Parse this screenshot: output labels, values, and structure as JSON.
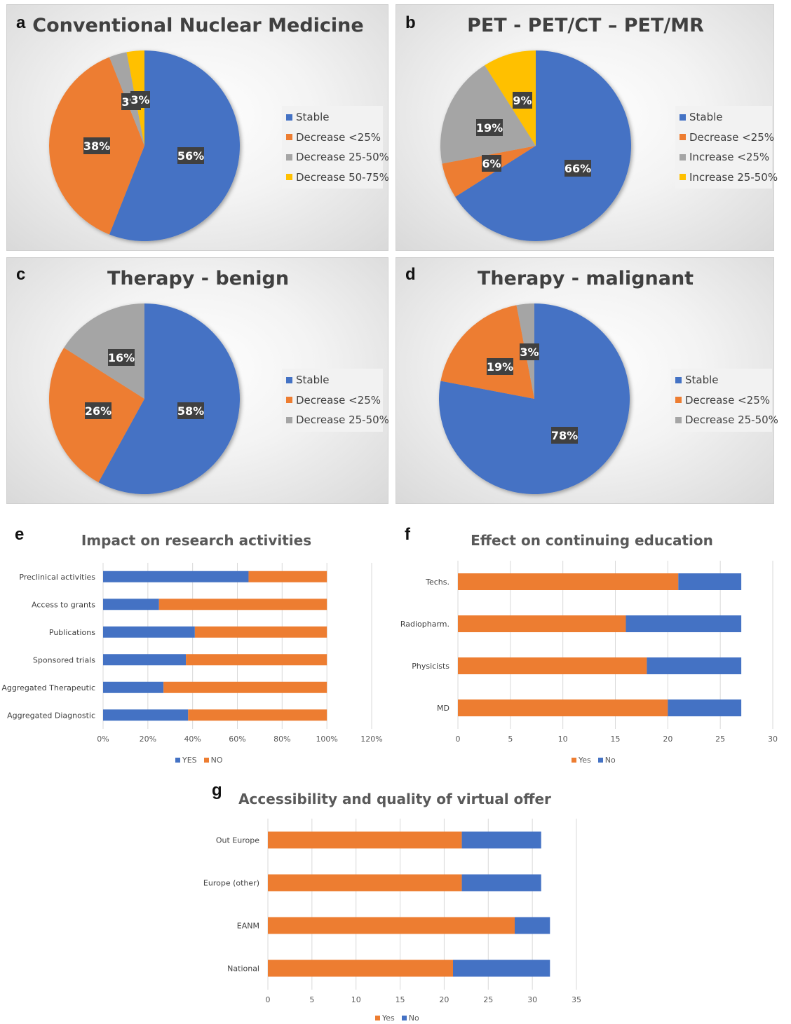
{
  "colors": {
    "blue": "#4472C4",
    "orange": "#ED7D31",
    "gray": "#A5A5A5",
    "yellow": "#FFC000"
  },
  "chart_data": [
    {
      "id": "a",
      "panel_label": "a",
      "type": "pie",
      "title": "Conventional Nuclear Medicine",
      "slices": [
        {
          "label": "Stable",
          "value": 56,
          "text": "56%",
          "color": "#4472C4"
        },
        {
          "label": "Decrease <25%",
          "value": 38,
          "text": "38%",
          "color": "#ED7D31"
        },
        {
          "label": "Decrease 25-50%",
          "value": 3,
          "text": "3%",
          "color": "#A5A5A5"
        },
        {
          "label": "Decrease 50-75%",
          "value": 3,
          "text": "3%",
          "color": "#FFC000"
        }
      ],
      "legend": "right"
    },
    {
      "id": "b",
      "panel_label": "b",
      "type": "pie",
      "title": "PET - PET/CT – PET/MR",
      "slices": [
        {
          "label": "Stable",
          "value": 66,
          "text": "66%",
          "color": "#4472C4"
        },
        {
          "label": "Decrease <25%",
          "value": 6,
          "text": "6%",
          "color": "#ED7D31"
        },
        {
          "label": "Increase <25%",
          "value": 19,
          "text": "19%",
          "color": "#A5A5A5"
        },
        {
          "label": "Increase 25-50%",
          "value": 9,
          "text": "9%",
          "color": "#FFC000"
        }
      ],
      "legend": "right"
    },
    {
      "id": "c",
      "panel_label": "c",
      "type": "pie",
      "title": "Therapy - benign",
      "slices": [
        {
          "label": "Stable",
          "value": 58,
          "text": "58%",
          "color": "#4472C4"
        },
        {
          "label": "Decrease <25%",
          "value": 26,
          "text": "26%",
          "color": "#ED7D31"
        },
        {
          "label": "Decrease 25-50%",
          "value": 16,
          "text": "16%",
          "color": "#A5A5A5"
        }
      ],
      "legend": "right"
    },
    {
      "id": "d",
      "panel_label": "d",
      "type": "pie",
      "title": "Therapy - malignant",
      "slices": [
        {
          "label": "Stable",
          "value": 78,
          "text": "78%",
          "color": "#4472C4"
        },
        {
          "label": "Decrease <25%",
          "value": 19,
          "text": "19%",
          "color": "#ED7D31"
        },
        {
          "label": "Decrease 25-50%",
          "value": 3,
          "text": "3%",
          "color": "#A5A5A5"
        }
      ],
      "legend": "right"
    },
    {
      "id": "e",
      "panel_label": "e",
      "type": "bar",
      "orientation": "horizontal",
      "stacked": true,
      "title": "Impact on research activities",
      "categories": [
        "Preclinical activities",
        "Access to grants",
        "Publications",
        "Sponsored trials",
        "Aggregated Therapeutic",
        "Aggregated Diagnostic"
      ],
      "series": [
        {
          "name": "YES",
          "values": [
            65,
            25,
            41,
            37,
            27,
            38
          ],
          "color": "#4472C4"
        },
        {
          "name": "NO",
          "values": [
            35,
            75,
            59,
            63,
            73,
            62
          ],
          "color": "#ED7D31"
        }
      ],
      "xlim": [
        0,
        120
      ],
      "ticks": [
        "0%",
        "20%",
        "40%",
        "60%",
        "80%",
        "100%",
        "120%"
      ],
      "legend": "bottom"
    },
    {
      "id": "f",
      "panel_label": "f",
      "type": "bar",
      "orientation": "horizontal",
      "stacked": true,
      "title": "Effect on continuing education",
      "categories": [
        "Techs.",
        "Radiopharm.",
        "Physicists",
        "MD"
      ],
      "series": [
        {
          "name": "Yes",
          "values": [
            21,
            16,
            18,
            20
          ],
          "color": "#ED7D31"
        },
        {
          "name": "No",
          "values": [
            6,
            11,
            9,
            7
          ],
          "color": "#4472C4"
        }
      ],
      "xlim": [
        0,
        30
      ],
      "ticks": [
        "0",
        "5",
        "10",
        "15",
        "20",
        "25",
        "30"
      ],
      "legend": "bottom"
    },
    {
      "id": "g",
      "panel_label": "g",
      "type": "bar",
      "orientation": "horizontal",
      "stacked": true,
      "title": "Accessibility and quality of virtual offer",
      "categories": [
        "Out Europe",
        "Europe (other)",
        "EANM",
        "National"
      ],
      "series": [
        {
          "name": "Yes",
          "values": [
            22,
            22,
            28,
            21
          ],
          "color": "#ED7D31"
        },
        {
          "name": "No",
          "values": [
            9,
            9,
            4,
            11
          ],
          "color": "#4472C4"
        }
      ],
      "xlim": [
        0,
        35
      ],
      "ticks": [
        "0",
        "5",
        "10",
        "15",
        "20",
        "25",
        "30",
        "35"
      ],
      "legend": "bottom"
    }
  ]
}
